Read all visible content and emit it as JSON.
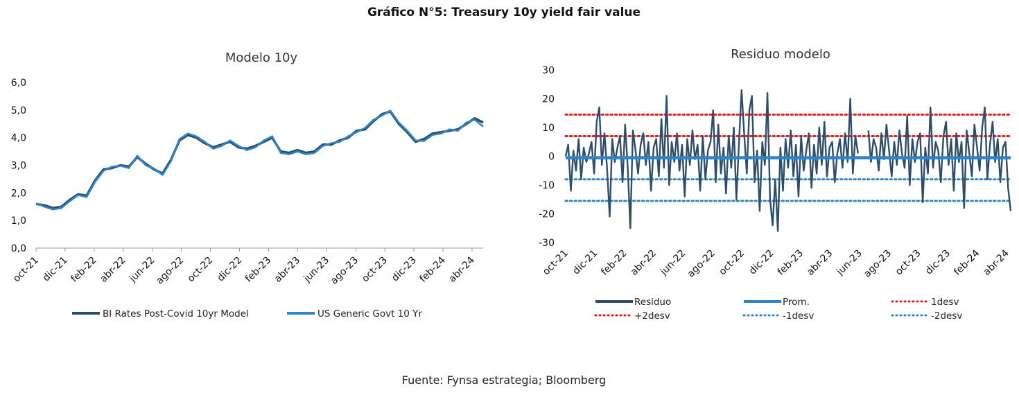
{
  "title": "Gráfico N°5: Treasury 10y yield fair value",
  "source": "Fuente: Fynsa estrategia; Bloomberg",
  "chart_data": [
    {
      "type": "line",
      "title": "Modelo 10y",
      "ylim": [
        0,
        6
      ],
      "yticks": [
        "0,0",
        "1,0",
        "2,0",
        "3,0",
        "4,0",
        "5,0",
        "6,0"
      ],
      "xticks": [
        "oct-21",
        "dic-21",
        "feb-22",
        "abr-22",
        "jun-22",
        "ago-22",
        "oct-22",
        "dic-22",
        "feb-23",
        "abr-23",
        "jun-23",
        "ago-23",
        "oct-23",
        "dic-23",
        "feb-24",
        "abr-24"
      ],
      "legend_position": "bottom",
      "series": [
        {
          "name": "BI Rates Post-Covid 10yr Model",
          "color": "#2d4d68",
          "values": [
            1.6,
            1.55,
            1.45,
            1.5,
            1.75,
            1.95,
            1.9,
            2.45,
            2.85,
            2.9,
            3.0,
            2.95,
            3.3,
            3.05,
            2.85,
            2.7,
            3.2,
            3.9,
            4.1,
            4.0,
            3.8,
            3.65,
            3.75,
            3.85,
            3.65,
            3.6,
            3.7,
            3.85,
            4.0,
            3.5,
            3.45,
            3.55,
            3.45,
            3.5,
            3.75,
            3.75,
            3.9,
            4.0,
            4.25,
            4.3,
            4.6,
            4.85,
            4.95,
            4.5,
            4.2,
            3.85,
            3.95,
            4.15,
            4.2,
            4.25,
            4.3,
            4.5,
            4.7,
            4.55
          ]
        },
        {
          "name": "US Generic Govt 10 Yr",
          "color": "#2e86c8",
          "values": [
            1.62,
            1.5,
            1.4,
            1.45,
            1.7,
            1.92,
            1.85,
            2.4,
            2.8,
            2.95,
            2.98,
            2.9,
            3.35,
            3.0,
            2.88,
            2.65,
            3.15,
            3.95,
            4.15,
            4.05,
            3.85,
            3.6,
            3.7,
            3.9,
            3.7,
            3.55,
            3.65,
            3.9,
            4.05,
            3.45,
            3.4,
            3.5,
            3.4,
            3.45,
            3.7,
            3.8,
            3.85,
            4.05,
            4.2,
            4.35,
            4.65,
            4.8,
            4.98,
            4.55,
            4.25,
            3.9,
            3.88,
            4.1,
            4.15,
            4.3,
            4.25,
            4.55,
            4.65,
            4.4
          ]
        }
      ]
    },
    {
      "type": "line",
      "title": "Residuo modelo",
      "ylim": [
        -30,
        30
      ],
      "yticks": [
        "-30",
        "-20",
        "-10",
        "0",
        "10",
        "20",
        "30"
      ],
      "xticks": [
        "oct-21",
        "dic-21",
        "feb-22",
        "abr-22",
        "jun-22",
        "ago-22",
        "oct-22",
        "dic-22",
        "feb-23",
        "abr-23",
        "jun-23",
        "ago-23",
        "oct-23",
        "dic-23",
        "feb-24",
        "abr-24"
      ],
      "legend_position": "bottom",
      "series": [
        {
          "name": "Residuo",
          "color": "#2d4d68",
          "values": [
            0,
            4,
            -12,
            2,
            -5,
            6,
            -8,
            3,
            -2,
            1,
            5,
            -6,
            12,
            17,
            -3,
            8,
            -4,
            -21,
            6,
            -2,
            3,
            7,
            -9,
            11,
            -4,
            -25,
            9,
            2,
            -6,
            4,
            8,
            -3,
            5,
            -12,
            3,
            6,
            -7,
            13,
            -4,
            21,
            -10,
            5,
            -2,
            8,
            -5,
            4,
            -14,
            6,
            -3,
            9,
            -1,
            4,
            -12,
            7,
            -8,
            2,
            5,
            16,
            -9,
            11,
            -6,
            3,
            -13,
            7,
            -4,
            10,
            -15,
            5,
            23,
            8,
            -6,
            16,
            21,
            -9,
            2,
            -19,
            5,
            -3,
            22,
            -15,
            -24,
            -8,
            -26,
            3,
            -12,
            6,
            -4,
            9,
            -7,
            4,
            -14,
            7,
            -5,
            2,
            8,
            -11,
            4,
            -6,
            10,
            -3,
            12,
            -7,
            3,
            5,
            -9,
            1,
            6,
            -4,
            8,
            -2,
            20,
            -6,
            7,
            1,
            null,
            null,
            null,
            9,
            -2,
            6,
            3,
            -5,
            8,
            -1,
            11,
            2,
            -7,
            5,
            -3,
            9,
            1,
            -4,
            14,
            -10,
            6,
            -2,
            5,
            8,
            -16,
            3,
            -6,
            17,
            -4,
            5,
            2,
            -9,
            7,
            12,
            -3,
            6,
            -12,
            8,
            -2,
            5,
            -18,
            9,
            1,
            -7,
            11,
            3,
            -5,
            10,
            17,
            -8,
            4,
            12,
            -2,
            6,
            -9,
            3,
            5,
            -11,
            -19
          ]
        },
        {
          "name": "Prom.",
          "color": "#2e86c8",
          "value": -0.5
        },
        {
          "name": "1desv",
          "color": "#e02020",
          "value": 7
        },
        {
          "name": "+2desv",
          "color": "#e02020",
          "value": 14.5
        },
        {
          "name": "-1desv",
          "color": "#2e86c8",
          "value": -8
        },
        {
          "name": "-2desv",
          "color": "#2e86c8",
          "value": -15.5
        }
      ]
    }
  ]
}
